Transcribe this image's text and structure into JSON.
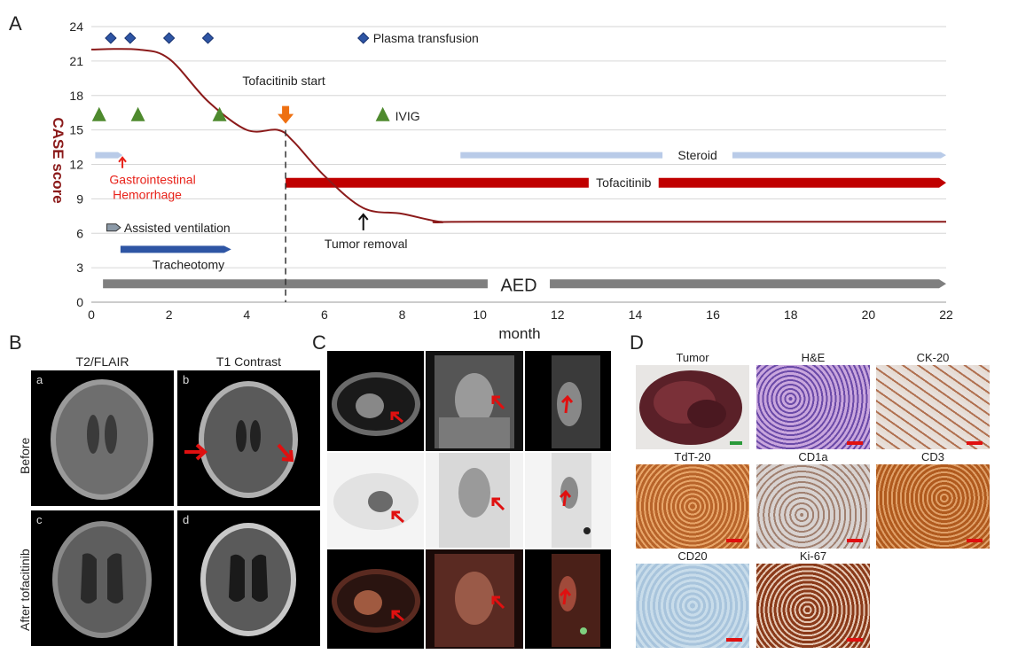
{
  "panel_letters": {
    "a": "A",
    "b": "B",
    "c": "C",
    "d": "D"
  },
  "chart_data": {
    "type": "line",
    "ylabel": "CASE score",
    "xlabel": "month",
    "xlim": [
      0,
      22
    ],
    "ylim": [
      0,
      24
    ],
    "x_ticks": [
      0,
      2,
      4,
      6,
      8,
      10,
      12,
      14,
      16,
      18,
      20,
      22
    ],
    "y_ticks": [
      0,
      3,
      6,
      9,
      12,
      15,
      18,
      21,
      24
    ],
    "grid": "horizontal",
    "series": [
      {
        "x": [
          0,
          1.2,
          2,
          3,
          4,
          4.8,
          5.2,
          6,
          7,
          8,
          9,
          10,
          22
        ],
        "y": [
          22,
          22,
          21.2,
          17.5,
          15,
          15,
          14,
          11,
          8.2,
          7.7,
          7.0,
          7.0,
          7.0
        ],
        "color": "#8b1a1a"
      }
    ],
    "markers": {
      "plasma_transfusion": {
        "x": [
          0.5,
          1.0,
          2.0,
          3.0
        ],
        "y": 23,
        "label": "Plasma transfusion",
        "legend_x": 7.0
      },
      "ivig": {
        "x": [
          0.2,
          1.2,
          3.3
        ],
        "y": 16.3,
        "label": "IVIG",
        "legend_x": 7.5
      }
    },
    "annotations": {
      "tofacitinib_start": {
        "x": 5,
        "label": "Tofacitinib start"
      },
      "gi_hemorrhage": {
        "x": 0.8,
        "label_line1": "Gastrointestinal",
        "label_line2": "Hemorrhage",
        "color": "#e8221a"
      },
      "tumor_removal": {
        "x": 7,
        "label": "Tumor removal"
      }
    },
    "bars": [
      {
        "name": "steroid_early",
        "from": 0.1,
        "to": 0.8,
        "y": 12.8,
        "color": "#b9cbe8",
        "label": ""
      },
      {
        "name": "steroid",
        "from": 9.5,
        "to": 22,
        "y": 12.8,
        "color": "#b9cbe8",
        "label": "Steroid",
        "label_x": 15.6
      },
      {
        "name": "tofacitinib",
        "from": 5,
        "to": 22,
        "y": 10.4,
        "color": "#c00000",
        "label": "Tofacitinib",
        "label_x": 13.7
      },
      {
        "name": "assisted_ventilation",
        "from": 0.4,
        "to": 0.75,
        "y": 6.5,
        "color": "#8c9aa8",
        "label": "Assisted ventilation"
      },
      {
        "name": "tracheotomy",
        "from": 0.75,
        "to": 3.6,
        "y": 4.6,
        "color": "#2e55a4",
        "label": "Tracheotomy"
      },
      {
        "name": "aed",
        "from": 0.3,
        "to": 22,
        "y": 1.6,
        "color": "#7f7f7f",
        "label": "AED",
        "label_x": 11.0
      }
    ]
  },
  "panel_b": {
    "col_titles": [
      "T2/FLAIR",
      "T1 Contrast"
    ],
    "row_labels": [
      "Before",
      "After tofacitinib"
    ],
    "image_labels": [
      "a",
      "b",
      "c",
      "d"
    ]
  },
  "panel_d": {
    "titles": [
      "Tumor",
      "H&E",
      "CK-20",
      "TdT-20",
      "CD1a",
      "CD3",
      "CD20",
      "Ki-67"
    ]
  }
}
